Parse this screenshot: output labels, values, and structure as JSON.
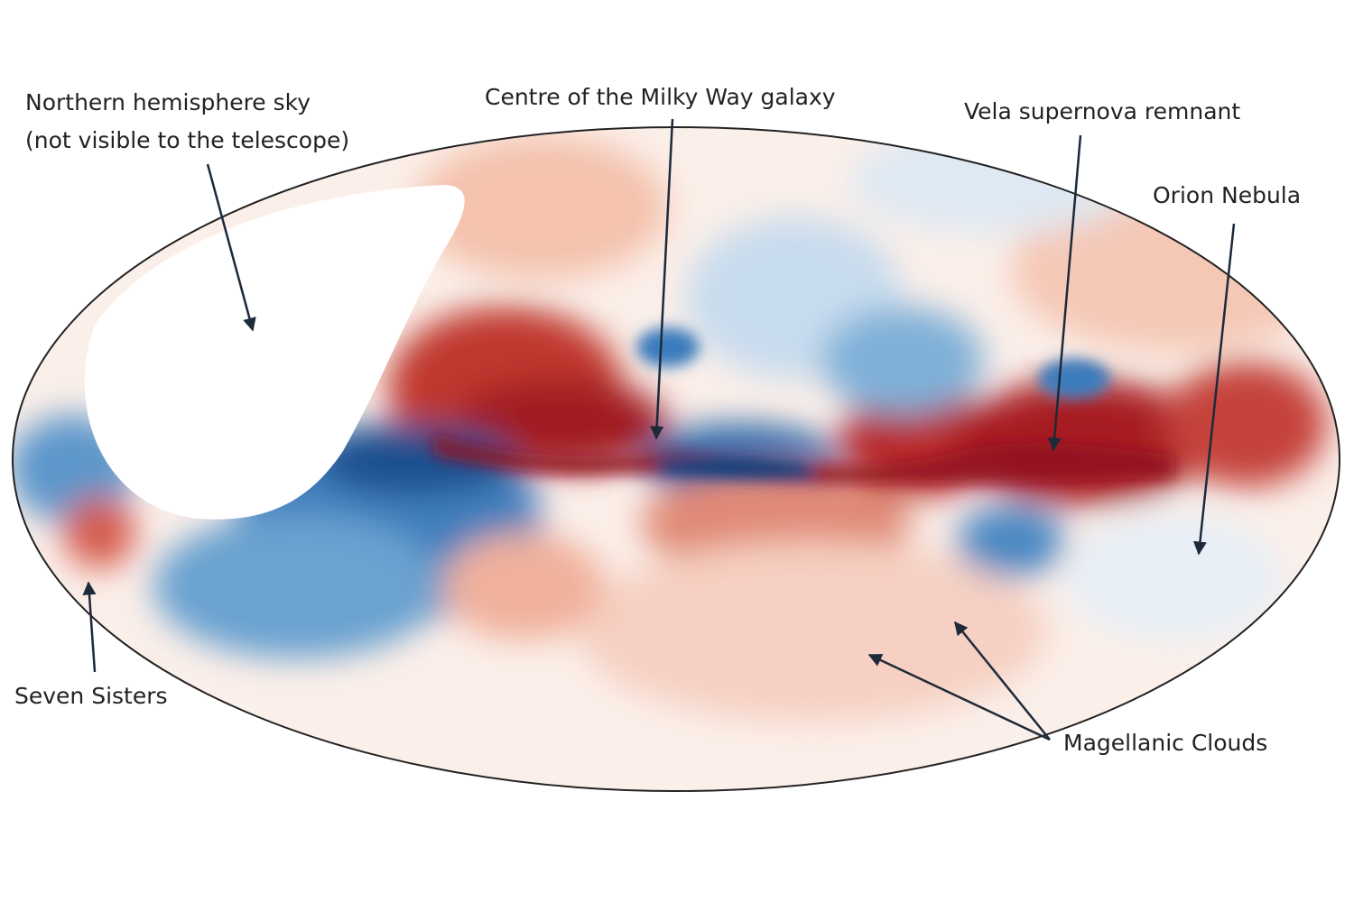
{
  "annotations": [
    {
      "lines": [
        "Northern hemisphere sky",
        "(not visible to the telescope)"
      ]
    },
    {
      "lines": [
        "Centre of the Milky Way galaxy"
      ]
    },
    {
      "lines": [
        "Vela supernova remnant"
      ]
    },
    {
      "lines": [
        "Orion Nebula"
      ]
    },
    {
      "lines": [
        "Seven Sisters"
      ]
    },
    {
      "lines": [
        "Magellanic Clouds"
      ]
    }
  ]
}
